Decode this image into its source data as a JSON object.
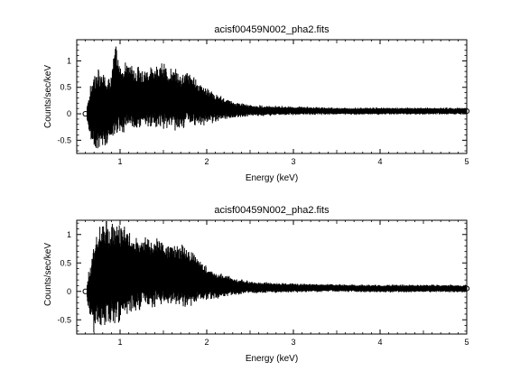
{
  "chart_data": [
    {
      "type": "scatter",
      "title": "acisf00459N002_pha2.fits",
      "xlabel": "Energy (keV)",
      "ylabel": "Counts/sec/keV",
      "xlim": [
        0.5,
        5.0
      ],
      "ylim": [
        -0.75,
        1.4
      ],
      "xticks": [
        "1",
        "2",
        "3",
        "4",
        "5"
      ],
      "yticks": [
        "-0.5",
        "0",
        "0.5",
        "1"
      ],
      "series": [
        {
          "style": "error bars with open circles",
          "color": "#000000",
          "x": [
            0.6,
            0.7,
            0.8,
            0.9,
            0.95,
            1.0,
            1.1,
            1.2,
            1.3,
            1.4,
            1.5,
            1.6,
            1.7,
            1.8,
            1.9,
            2.0,
            2.1,
            2.2,
            2.3,
            2.5,
            3.0,
            3.5,
            4.0,
            4.5,
            5.0
          ],
          "y": [
            0.0,
            0.05,
            0.08,
            0.1,
            0.45,
            0.3,
            0.32,
            0.28,
            0.3,
            0.33,
            0.35,
            0.28,
            0.25,
            0.3,
            0.2,
            0.15,
            0.12,
            0.1,
            0.08,
            0.06,
            0.06,
            0.05,
            0.05,
            0.05,
            0.05
          ],
          "err": [
            0.02,
            0.6,
            0.55,
            0.5,
            0.7,
            0.5,
            0.48,
            0.45,
            0.42,
            0.45,
            0.45,
            0.42,
            0.4,
            0.38,
            0.32,
            0.25,
            0.2,
            0.15,
            0.12,
            0.08,
            0.06,
            0.05,
            0.05,
            0.05,
            0.05
          ]
        }
      ]
    },
    {
      "type": "scatter",
      "title": "acisf00459N002_pha2.fits",
      "xlabel": "Energy (keV)",
      "ylabel": "Counts/sec/keV",
      "xlim": [
        0.5,
        5.0
      ],
      "ylim": [
        -0.75,
        1.25
      ],
      "xticks": [
        "1",
        "2",
        "3",
        "4",
        "5"
      ],
      "yticks": [
        "-0.5",
        "0",
        "0.5",
        "1"
      ],
      "series": [
        {
          "style": "error bars with open circles",
          "color": "#000000",
          "x": [
            0.6,
            0.7,
            0.8,
            0.9,
            1.0,
            1.1,
            1.2,
            1.3,
            1.4,
            1.5,
            1.6,
            1.7,
            1.8,
            1.9,
            2.0,
            2.1,
            2.2,
            2.3,
            2.5,
            3.0,
            3.5,
            4.0,
            4.5,
            5.0
          ],
          "y": [
            0.0,
            0.05,
            0.3,
            0.35,
            0.35,
            0.33,
            0.3,
            0.32,
            0.33,
            0.33,
            0.3,
            0.28,
            0.25,
            0.2,
            0.15,
            0.12,
            0.1,
            0.08,
            0.07,
            0.06,
            0.06,
            0.05,
            0.05,
            0.05
          ],
          "err": [
            0.02,
            0.6,
            0.7,
            0.7,
            0.65,
            0.55,
            0.5,
            0.45,
            0.45,
            0.42,
            0.42,
            0.4,
            0.38,
            0.3,
            0.22,
            0.18,
            0.15,
            0.12,
            0.08,
            0.06,
            0.05,
            0.05,
            0.05,
            0.05
          ]
        }
      ]
    }
  ]
}
